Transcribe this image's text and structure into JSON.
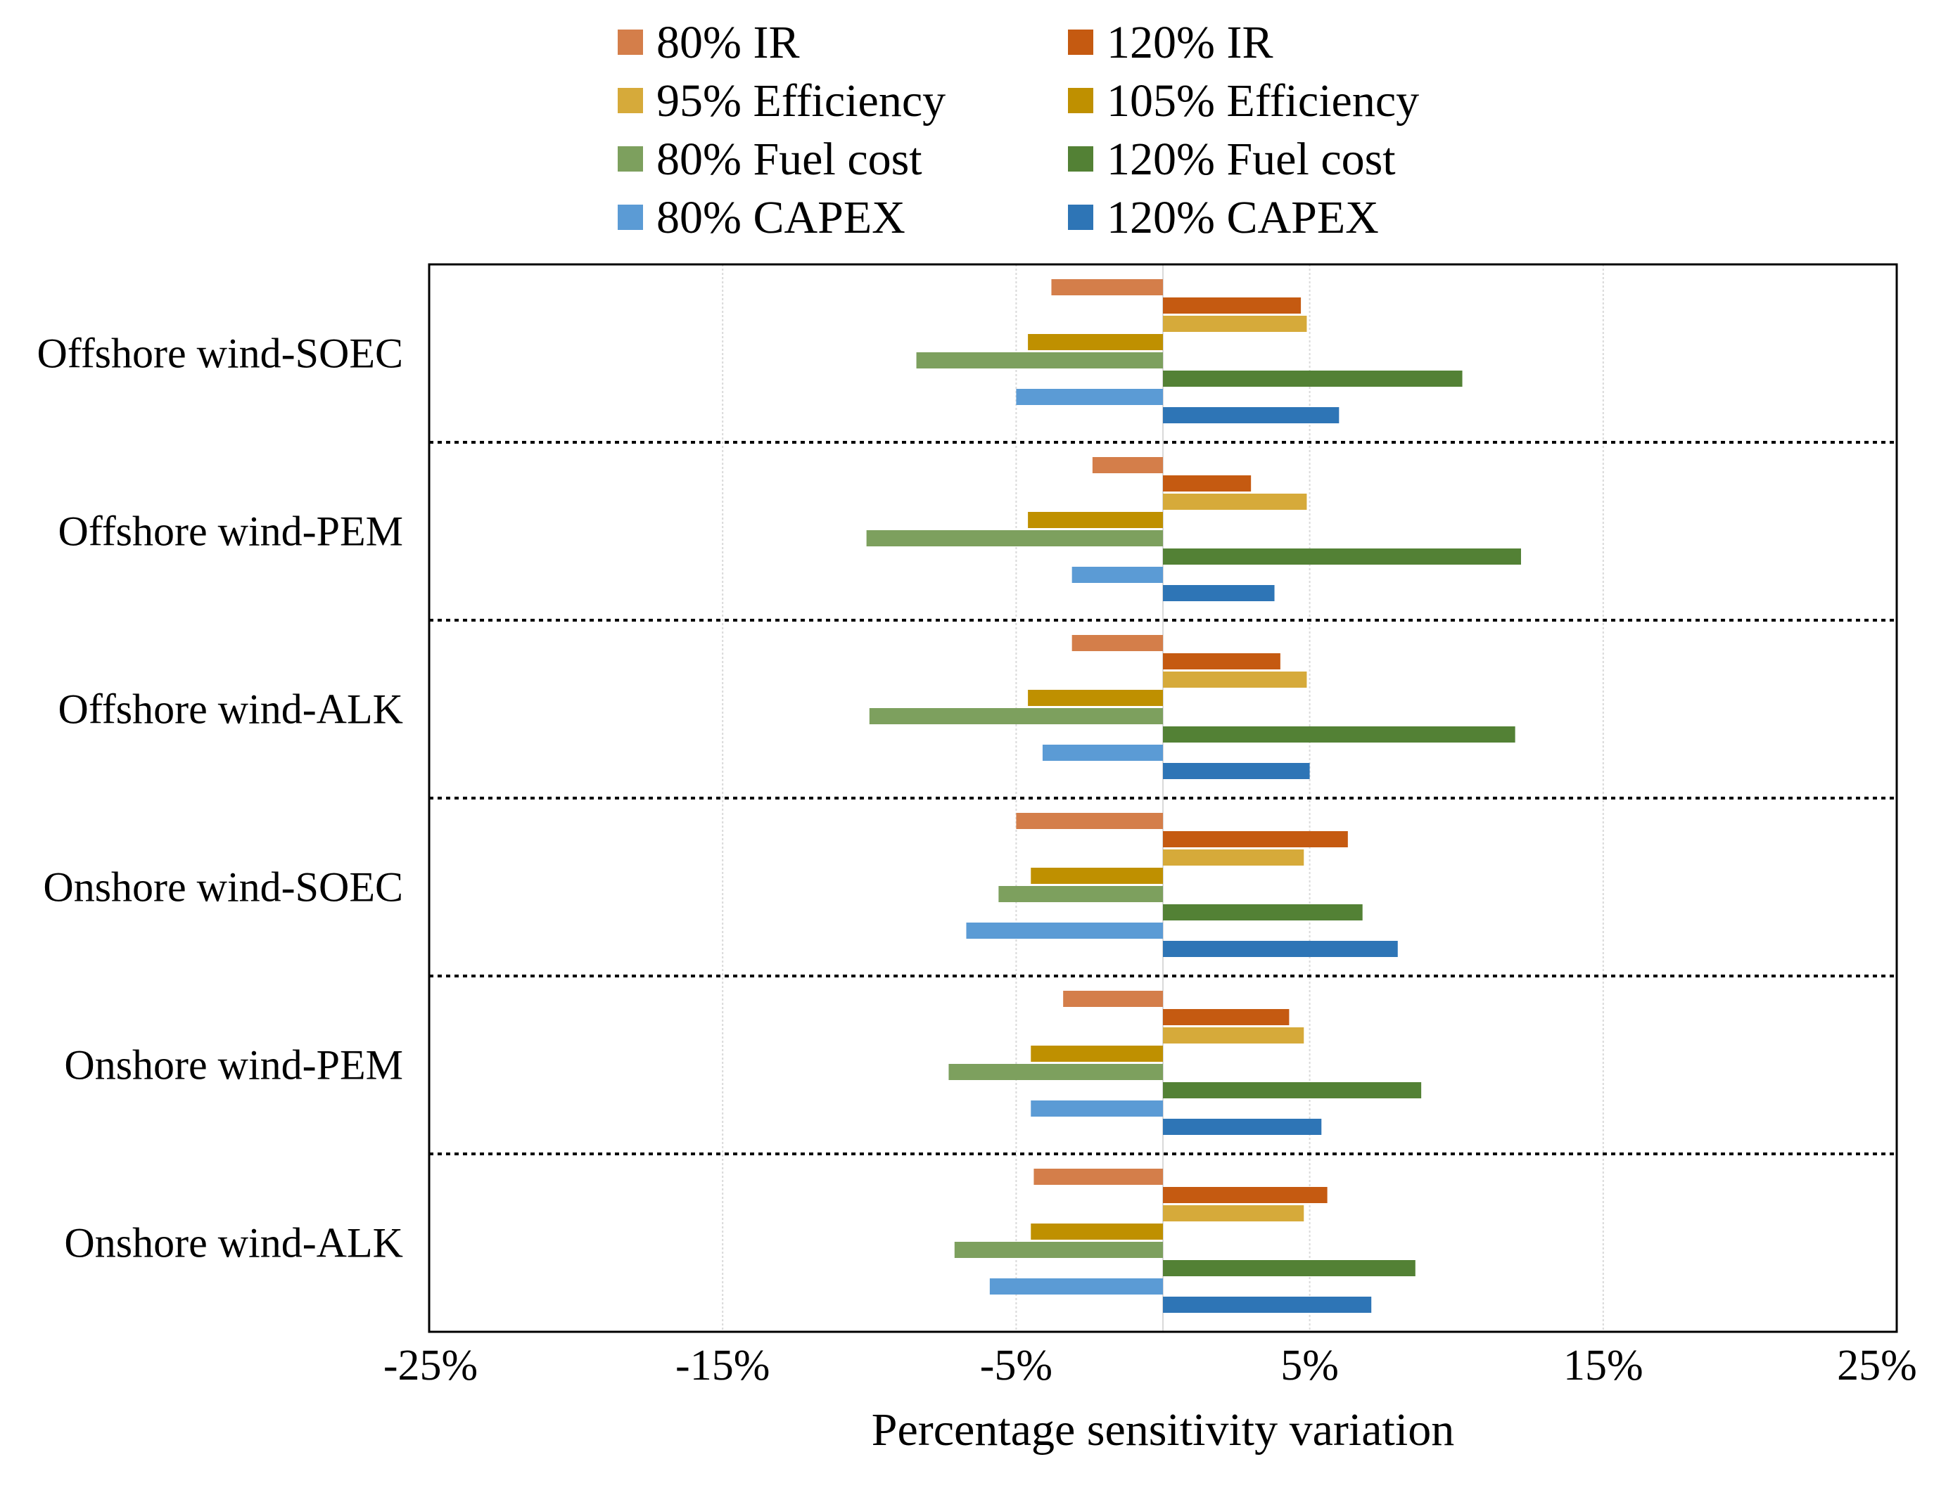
{
  "chart_data": {
    "type": "bar",
    "orientation": "horizontal",
    "xlabel": "Percentage sensitivity variation",
    "xlim": [
      -25,
      25
    ],
    "x_ticks": [
      -25,
      -15,
      -5,
      5,
      15,
      25
    ],
    "x_tick_labels": [
      "-25%",
      "-15%",
      "-5%",
      "5%",
      "15%",
      "25%"
    ],
    "grid": true,
    "legend_position": "top",
    "categories": [
      "Offshore wind-SOEC",
      "Offshore wind-PEM",
      "Offshore wind-ALK",
      "Onshore wind-SOEC",
      "Onshore wind-PEM",
      "Onshore wind-ALK"
    ],
    "series": [
      {
        "name": "80% IR",
        "color": "#D47E4A",
        "values": [
          -3.8,
          -2.4,
          -3.1,
          -5.0,
          -3.4,
          -4.4
        ]
      },
      {
        "name": "120% IR",
        "color": "#C55A11",
        "values": [
          4.7,
          3.0,
          4.0,
          6.3,
          4.3,
          5.6
        ]
      },
      {
        "name": "95% Efficiency",
        "color": "#D6AA3A",
        "values": [
          4.9,
          4.9,
          4.9,
          4.8,
          4.8,
          4.8
        ]
      },
      {
        "name": "105% Efficiency",
        "color": "#BF9000",
        "values": [
          -4.6,
          -4.6,
          -4.6,
          -4.5,
          -4.5,
          -4.5
        ]
      },
      {
        "name": "80% Fuel cost",
        "color": "#7DA05E",
        "values": [
          -8.4,
          -10.1,
          -10.0,
          -5.6,
          -7.3,
          -7.1
        ]
      },
      {
        "name": "120% Fuel cost",
        "color": "#538135",
        "values": [
          10.2,
          12.2,
          12.0,
          6.8,
          8.8,
          8.6
        ]
      },
      {
        "name": "80% CAPEX",
        "color": "#5B9BD5",
        "values": [
          -5.0,
          -3.1,
          -4.1,
          -6.7,
          -4.5,
          -5.9
        ]
      },
      {
        "name": "120% CAPEX",
        "color": "#2E75B6",
        "values": [
          6.0,
          3.8,
          5.0,
          8.0,
          5.4,
          7.1
        ]
      }
    ]
  }
}
